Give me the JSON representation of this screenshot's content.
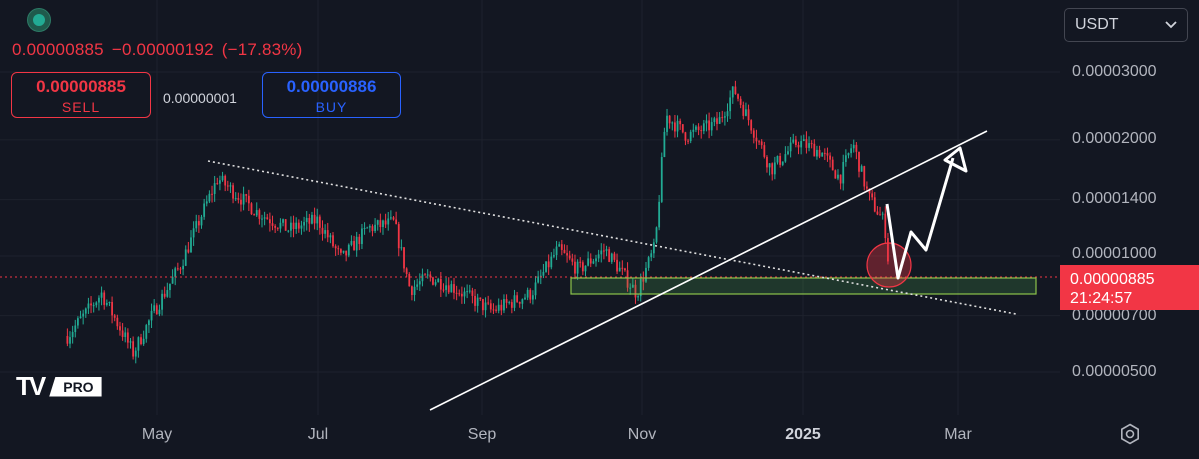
{
  "header": {
    "last_price": "0.00000885",
    "change": "−0.00000192",
    "change_pct": "(−17.83%)"
  },
  "trade": {
    "sell_price": "0.00000885",
    "sell_label": "SELL",
    "spread": "0.00000001",
    "buy_price": "0.00000886",
    "buy_label": "BUY"
  },
  "currency_selector": {
    "value": "USDT",
    "icon": "chevron-down-icon"
  },
  "price_label": {
    "price": "0.00000885",
    "countdown": "21:24:57"
  },
  "branding": {
    "logo": "TV",
    "badge": "PRO"
  },
  "colors": {
    "up": "#22ab94",
    "down": "#f23645",
    "zone": "#4caf50",
    "accent": "#2962ff"
  },
  "chart_data": {
    "type": "candlestick",
    "y_scale": "log",
    "ylim": [
      4.1e-06,
      4.2e-06
    ],
    "y_ticks": [
      "0.00003000",
      "0.00002000",
      "0.00001400",
      "0.00001000",
      "0.00000700",
      "0.00000500"
    ],
    "x_ticks": [
      "May",
      "Jul",
      "Sep",
      "Nov",
      "2025",
      "Mar"
    ],
    "x_ticks_bold": [
      "2025"
    ],
    "series": [
      {
        "close_path": [
          [
            "Mar 28",
            6.2e-06
          ],
          [
            "Apr 10",
            8e-06
          ],
          [
            "Apr 22",
            5.6e-06
          ],
          [
            "Apr 30",
            7.2e-06
          ],
          [
            "May 10",
            9.5e-06
          ],
          [
            "May 18",
            1.28e-05
          ],
          [
            "May 24",
            1.59e-05
          ],
          [
            "Jun 1",
            1.43e-05
          ],
          [
            "Jun 8",
            1.3e-05
          ],
          [
            "Jun 20",
            1.17e-05
          ],
          [
            "Jul 1",
            1.24e-05
          ],
          [
            "Jul 10",
            9.8e-06
          ],
          [
            "Jul 20",
            1.18e-05
          ],
          [
            "Jul 30",
            1.22e-05
          ],
          [
            "Aug 5",
            8.2e-06
          ],
          [
            "Aug 12",
            8.8e-06
          ],
          [
            "Aug 20",
            8.4e-06
          ],
          [
            "Sep 5",
            7.2e-06
          ],
          [
            "Sep 20",
            8e-06
          ],
          [
            "Sep 30",
            1.04e-05
          ],
          [
            "Oct 8",
            9.2e-06
          ],
          [
            "Oct 18",
            1.04e-05
          ],
          [
            "Oct 30",
            8e-06
          ],
          [
            "Nov 6",
            1.06e-05
          ],
          [
            "Nov 10",
            2.32e-05
          ],
          [
            "Nov 18",
            2.05e-05
          ],
          [
            "Nov 30",
            2.22e-05
          ],
          [
            "Dec 6",
            2.7e-05
          ],
          [
            "Dec 12",
            2.22e-05
          ],
          [
            "Dec 20",
            1.68e-05
          ],
          [
            "Dec 30",
            1.98e-05
          ],
          [
            "Jan 8",
            1.86e-05
          ],
          [
            "Jan 15",
            1.59e-05
          ],
          [
            "Jan 20",
            1.96e-05
          ],
          [
            "Jan 26",
            1.42e-05
          ],
          [
            "Feb 1",
            1.22e-05
          ],
          [
            "Feb 3",
            8.85e-06
          ]
        ]
      }
    ],
    "annotations": {
      "support_zone": [
        8.1e-06,
        8.6e-06
      ],
      "last_price_line": 8.85e-06
    }
  }
}
